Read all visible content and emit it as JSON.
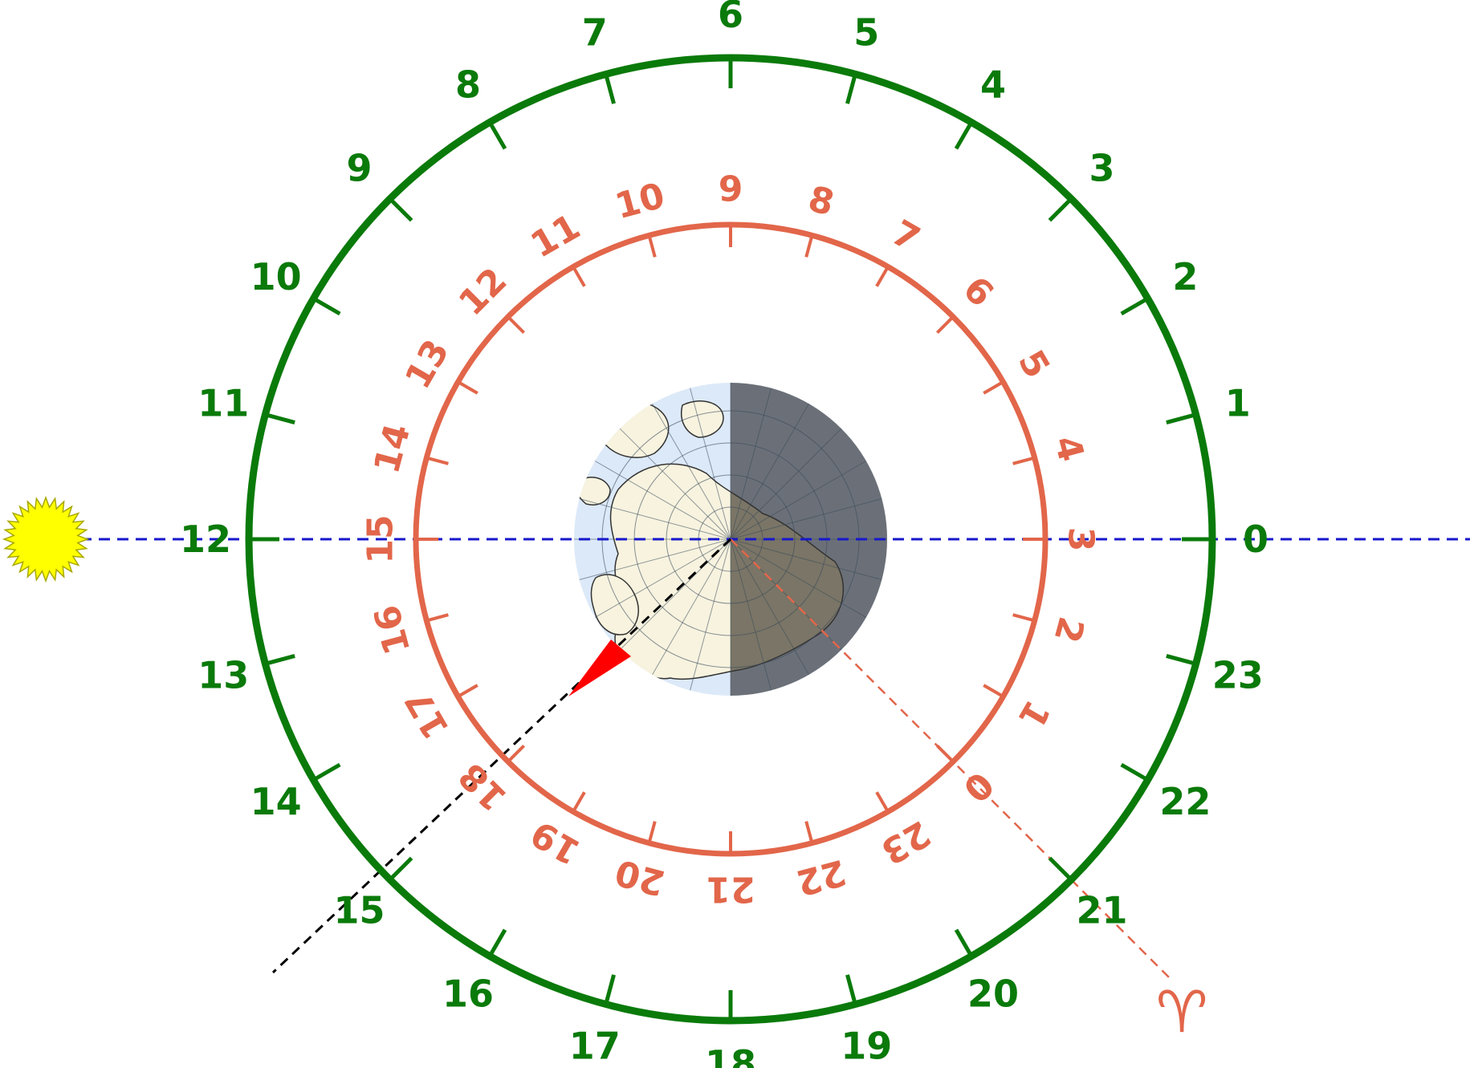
{
  "colors": {
    "solar_dial": "#0a7a0a",
    "sidereal_dial": "#e2664a",
    "sun_fill": "#ffff00",
    "sun_stroke": "#a8a800",
    "sun_line": "#1818cc",
    "observer_line": "#000000",
    "observer_marker": "#ff0000",
    "earth_day": "#dce9f8",
    "earth_night": "#6b7078",
    "land_day": "#f7f3df",
    "land_night": "#7a7566"
  },
  "solar_dial": {
    "labels": [
      "0",
      "1",
      "2",
      "3",
      "4",
      "5",
      "6",
      "7",
      "8",
      "9",
      "10",
      "11",
      "12",
      "13",
      "14",
      "15",
      "16",
      "17",
      "18",
      "19",
      "20",
      "21",
      "22",
      "23"
    ]
  },
  "sidereal_dial": {
    "labels": [
      "0",
      "1",
      "2",
      "3",
      "4",
      "5",
      "6",
      "7",
      "8",
      "9",
      "10",
      "11",
      "12",
      "13",
      "14",
      "15",
      "16",
      "17",
      "18",
      "19",
      "20",
      "21",
      "22",
      "23"
    ]
  },
  "aries_symbol": "♈",
  "icons": {
    "sun": "sun-icon",
    "earth": "earth-north-pole-globe",
    "observer": "observer-marker-triangle",
    "aries": "aries-icon"
  }
}
